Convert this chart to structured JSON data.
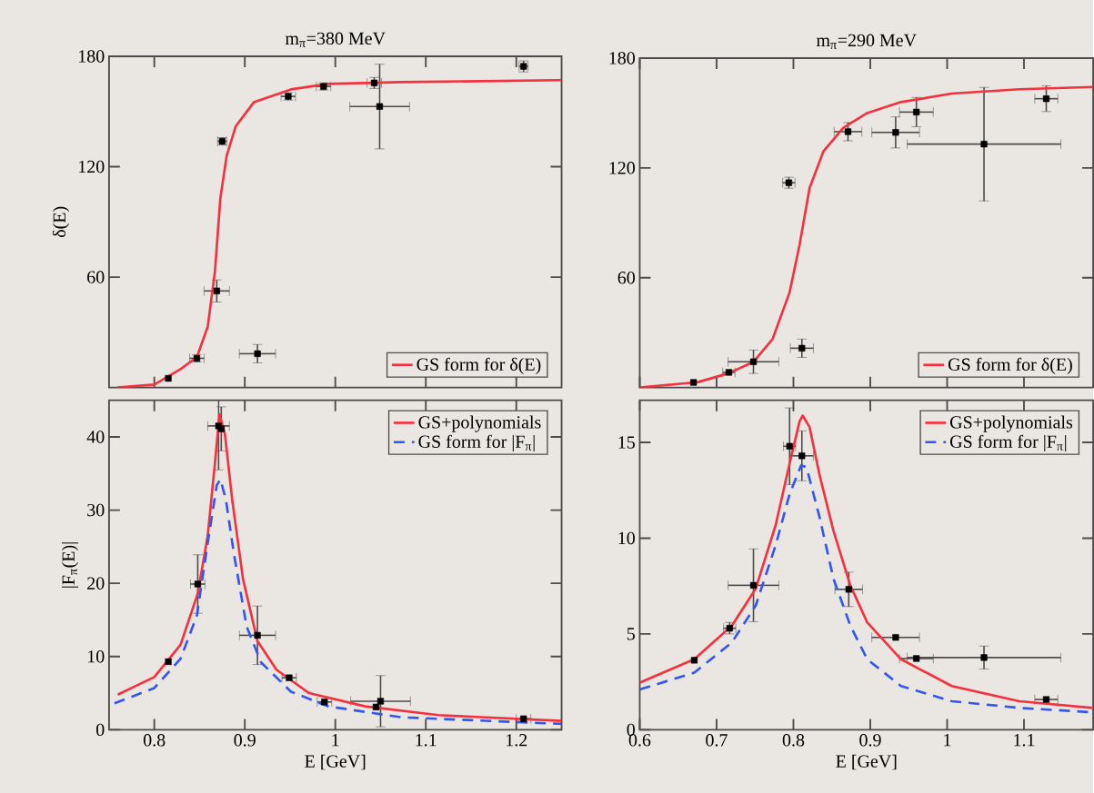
{
  "chart_data": [
    {
      "type": "line",
      "title": "m$_{π}$=380 MeV",
      "ylabel": "δ(E)",
      "xlim": [
        0.75,
        1.25
      ],
      "ylim": [
        0,
        180
      ],
      "xticks": [
        0.8,
        0.9,
        1,
        1.1,
        1.2
      ],
      "yticks": [
        60,
        120,
        180
      ],
      "tick_labels": "y",
      "legend": "bottom right",
      "series": [
        {
          "type": "scatter",
          "color": "#000000",
          "marker": "square",
          "x": [
            0.8155,
            0.847,
            0.869,
            0.875,
            0.914,
            0.948,
            0.987,
            1.043,
            1.049,
            1.208
          ],
          "values": [
            5.0,
            15.9,
            52.5,
            133.8,
            18.4,
            158.2,
            163.6,
            165.5,
            152.7,
            174.5
          ],
          "errors": [
            null,
            2,
            6,
            2,
            5,
            2,
            2,
            3,
            23,
            3
          ],
          "xerrors": [
            null,
            0.008,
            0.014,
            0.005,
            0.02,
            0.008,
            0.008,
            0.008,
            0.033,
            0.005
          ]
        },
        {
          "type": "line",
          "name": "GS form for δ(E)",
          "color": "#f5303f",
          "line_style": "solid",
          "x": [
            0.759,
            0.8,
            0.829,
            0.847,
            0.859,
            0.867,
            0.873,
            0.88,
            0.89,
            0.91,
            0.951,
            0.992,
            1.073,
            1.25
          ],
          "values": [
            0,
            1.6,
            10,
            16.5,
            33,
            63,
            103,
            126,
            142,
            155,
            162,
            165,
            166,
            167
          ]
        }
      ]
    },
    {
      "type": "line",
      "title": "m$_{π}$=290 MeV",
      "xlim": [
        0.6,
        1.19
      ],
      "ylim": [
        0,
        180
      ],
      "xticks": [
        0.6,
        0.7,
        0.8,
        0.9,
        1,
        1.1
      ],
      "yticks": [
        60,
        120,
        180
      ],
      "tick_labels": "y",
      "legend": "bottom right",
      "series": [
        {
          "type": "scatter",
          "color": "#000000",
          "marker": "square",
          "x": [
            0.67,
            0.716,
            0.748,
            0.794,
            0.811,
            0.871,
            0.933,
            0.96,
            1.048,
            1.129
          ],
          "values": [
            2.8,
            8.3,
            14.1,
            111.9,
            21.5,
            139.8,
            139.4,
            150.5,
            133,
            157.8
          ],
          "errors": [
            null,
            null,
            6.4,
            3,
            5,
            5,
            8.5,
            8,
            31,
            7
          ],
          "xerrors": [
            null,
            0.008,
            0.033,
            0.008,
            0.015,
            0.018,
            0.031,
            0.022,
            0.1,
            0.015
          ]
        },
        {
          "type": "line",
          "name": "GS form for δ(E)",
          "color": "#f5303f",
          "line_style": "solid",
          "x": [
            0.6,
            0.676,
            0.715,
            0.748,
            0.773,
            0.795,
            0.808,
            0.821,
            0.839,
            0.865,
            0.896,
            0.94,
            1.006,
            1.094,
            1.19
          ],
          "values": [
            0,
            3,
            7.7,
            14,
            26.6,
            52,
            78,
            109,
            129,
            142,
            150,
            156,
            160.6,
            163,
            164.2
          ]
        }
      ]
    },
    {
      "type": "line",
      "xlabel": "E  [GeV]",
      "ylabel": "|F$_{π}$(E)|",
      "xlim": [
        0.75,
        1.25
      ],
      "ylim": [
        0,
        45
      ],
      "xticks": [
        0.8,
        0.9,
        1,
        1.1,
        1.2
      ],
      "yticks": [
        0,
        10,
        20,
        30,
        40
      ],
      "legend": "top right",
      "series": [
        {
          "type": "scatter",
          "color": "#000000",
          "marker": "square",
          "x": [
            0.8155,
            0.848,
            0.871,
            0.874,
            0.914,
            0.949,
            0.988,
            1.045,
            1.05,
            1.208
          ],
          "values": [
            9.3,
            19.9,
            41.5,
            41.1,
            12.9,
            7.1,
            3.8,
            3.1,
            3.9,
            1.5
          ],
          "errors": [
            null,
            4,
            6,
            3,
            4,
            null,
            null,
            null,
            3.5,
            null
          ],
          "xerrors": [
            null,
            0.008,
            0.012,
            null,
            0.02,
            0.008,
            0.008,
            null,
            0.033,
            0.008
          ]
        },
        {
          "type": "line",
          "name": "GS+polynomials",
          "color": "#f5303f",
          "line_style": "solid",
          "x": [
            0.7596,
            0.8,
            0.829,
            0.848,
            0.859,
            0.867,
            0.872,
            0.878,
            0.886,
            0.898,
            0.914,
            0.935,
            0.971,
            1.033,
            1.114,
            1.25
          ],
          "values": [
            4.8,
            7.2,
            11.6,
            18.6,
            26.5,
            36.4,
            43.1,
            40.4,
            31.5,
            20.6,
            12.1,
            8.2,
            5.0,
            3.2,
            2.0,
            1.2
          ]
        },
        {
          "type": "line",
          "name": "GS form for |F$_{π}$|",
          "color": "#3355f0",
          "line_style": "dashed",
          "x": [
            0.756,
            0.8,
            0.829,
            0.847,
            0.859,
            0.869,
            0.873,
            0.879,
            0.888,
            0.902,
            0.918,
            0.951,
            0.992,
            1.073,
            1.25
          ],
          "values": [
            3.6,
            5.7,
            9.7,
            15.6,
            25.5,
            33.4,
            34.2,
            31.5,
            24.0,
            14.1,
            9.2,
            5.2,
            3.2,
            1.7,
            0.8
          ]
        }
      ]
    },
    {
      "type": "line",
      "xlabel": "E  [GeV]",
      "xlim": [
        0.6,
        1.19
      ],
      "ylim": [
        0,
        17.2
      ],
      "xticks": [
        0.6,
        0.7,
        0.8,
        0.9,
        1,
        1.1
      ],
      "yticks": [
        0,
        5,
        10,
        15
      ],
      "legend": "top right",
      "series": [
        {
          "type": "scatter",
          "color": "#000000",
          "marker": "square",
          "x": [
            0.671,
            0.717,
            0.748,
            0.795,
            0.811,
            0.872,
            0.933,
            0.96,
            1.048,
            1.129
          ],
          "values": [
            3.63,
            5.3,
            7.54,
            14.8,
            14.3,
            7.33,
            4.82,
            3.72,
            3.77,
            1.58
          ],
          "errors": [
            null,
            0.3,
            1.9,
            2,
            1.3,
            0.9,
            null,
            null,
            0.6,
            null
          ],
          "xerrors": [
            null,
            0.008,
            0.033,
            0.008,
            0.015,
            0.018,
            0.031,
            0.022,
            0.1,
            0.015
          ]
        },
        {
          "type": "line",
          "name": "GS+polynomials",
          "color": "#f5303f",
          "line_style": "solid",
          "x": [
            0.6,
            0.671,
            0.72,
            0.751,
            0.777,
            0.795,
            0.808,
            0.812,
            0.821,
            0.834,
            0.852,
            0.874,
            0.896,
            0.94,
            1.006,
            1.094,
            1.19
          ],
          "values": [
            2.46,
            3.68,
            5.44,
            7.37,
            10.7,
            13.9,
            16.1,
            16.4,
            15.8,
            13.3,
            10.4,
            7.54,
            5.61,
            3.68,
            2.28,
            1.49,
            1.14
          ]
        },
        {
          "type": "line",
          "name": "GS form for |F$_{π}$|",
          "color": "#3355f0",
          "line_style": "dashed",
          "x": [
            0.6,
            0.671,
            0.72,
            0.751,
            0.777,
            0.795,
            0.81,
            0.817,
            0.834,
            0.852,
            0.874,
            0.896,
            0.94,
            1.006,
            1.094,
            1.19
          ],
          "values": [
            2.1,
            2.98,
            4.56,
            6.49,
            9.65,
            12.3,
            13.8,
            13.7,
            11.1,
            7.9,
            5.44,
            3.68,
            2.28,
            1.49,
            1.14,
            0.91
          ]
        }
      ]
    }
  ]
}
